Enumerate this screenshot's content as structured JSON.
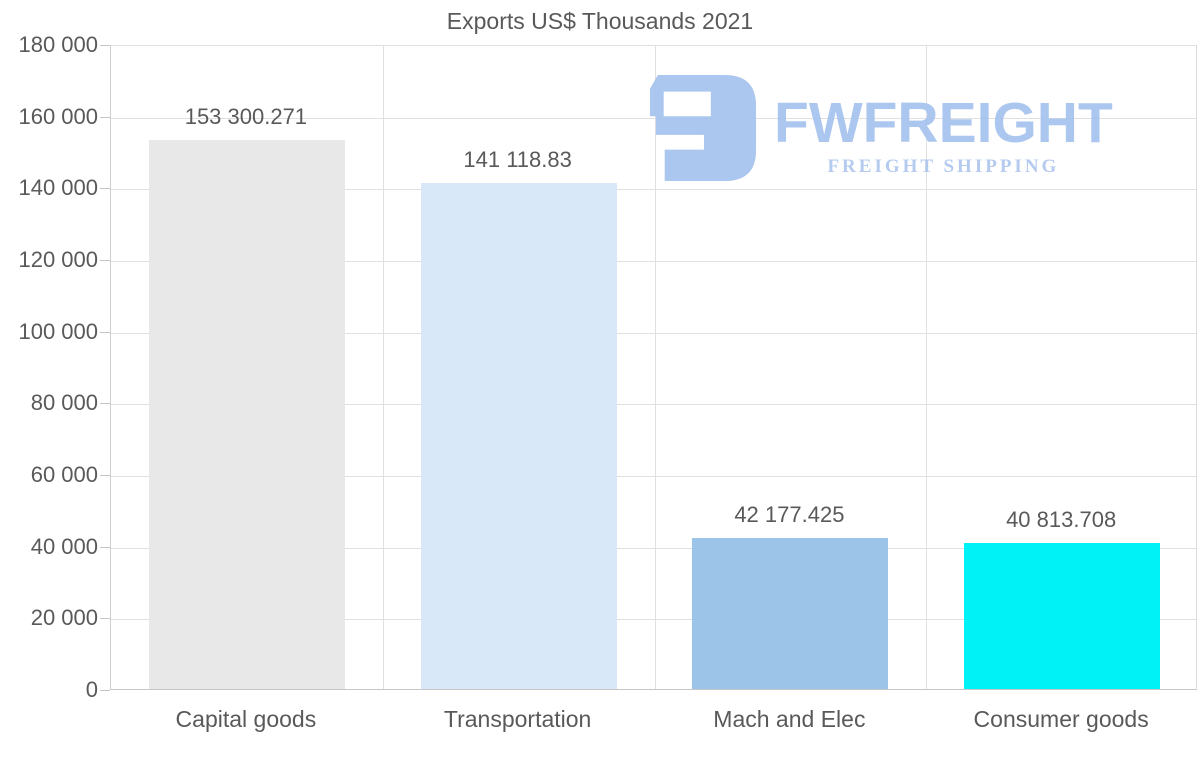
{
  "title": "Exports US$ Thousands 2021",
  "logo": {
    "brand": "FWFREIGHT",
    "tagline": "FREIGHT SHIPPING",
    "brand_color": "#a6c3ee",
    "tagline_color": "#aec7ee",
    "mark_color": "#a6c3ee"
  },
  "chart_data": {
    "type": "bar",
    "title": "Exports US$ Thousands 2021",
    "categories": [
      "Capital goods",
      "Transportation",
      "Mach and Elec",
      "Consumer goods"
    ],
    "values": [
      153300.271,
      141118.83,
      42177.425,
      40813.708
    ],
    "value_labels": [
      "153 300.271",
      "141 118.83",
      "42 177.425",
      "40 813.708"
    ],
    "bar_colors": [
      "#e8e8e8",
      "#d9e8f9",
      "#9cc4e8",
      "#00f2f7"
    ],
    "xlabel": "",
    "ylabel": "",
    "ylim": [
      0,
      180000
    ],
    "ytick_step": 20000,
    "ytick_labels": [
      "0",
      "20 000",
      "40 000",
      "60 000",
      "80 000",
      "100 000",
      "120 000",
      "140 000",
      "160 000",
      "180 000"
    ],
    "grid": true,
    "legend_position": "none"
  },
  "style": {
    "text_color": "#595959",
    "grid_color": "#e0e0e0",
    "axis_color": "#c6c6c6"
  }
}
